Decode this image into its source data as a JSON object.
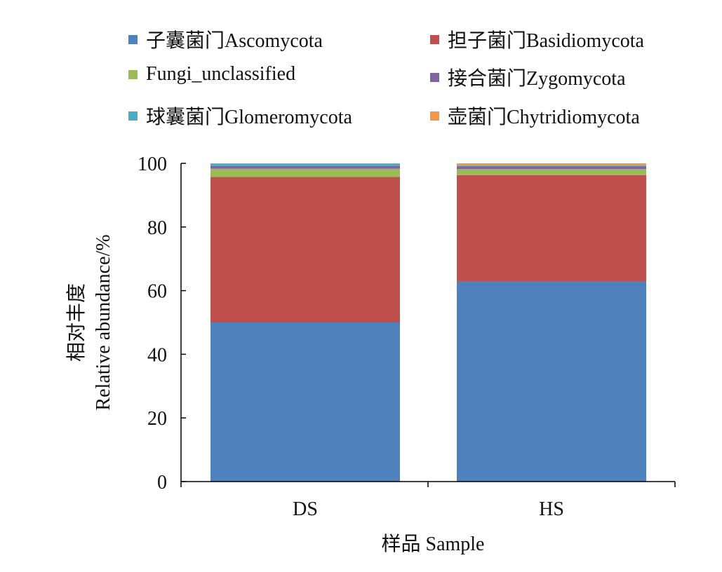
{
  "chart_data": {
    "type": "bar",
    "stacked": true,
    "categories": [
      "DS",
      "HS"
    ],
    "series": [
      {
        "name": "子囊菌门Ascomycota",
        "color": "#4f81bd",
        "values": [
          50.0,
          63.0
        ]
      },
      {
        "name": "担子菌门Basidiomycota",
        "color": "#c0504d",
        "values": [
          45.7,
          33.3
        ]
      },
      {
        "name": "Fungi_unclassified",
        "color": "#9bbb59",
        "values": [
          2.6,
          1.9
        ]
      },
      {
        "name": "接合菌门Zygomycota",
        "color": "#8064a2",
        "values": [
          0.9,
          0.9
        ]
      },
      {
        "name": "球囊菌门Glomeromycota",
        "color": "#4bacc6",
        "values": [
          0.75,
          0.2
        ]
      },
      {
        "name": "壶菌门Chytridiomycota",
        "color": "#f79646",
        "values": [
          0.05,
          0.7
        ]
      }
    ],
    "xlabel": "样品 Sample",
    "ylabel_line1": "相对丰度",
    "ylabel_line2": "Relative abundance/%",
    "ylim": [
      0,
      100
    ],
    "yticks": [
      "0",
      "20",
      "40",
      "60",
      "80",
      "100"
    ],
    "legend": "top",
    "grid": false
  }
}
